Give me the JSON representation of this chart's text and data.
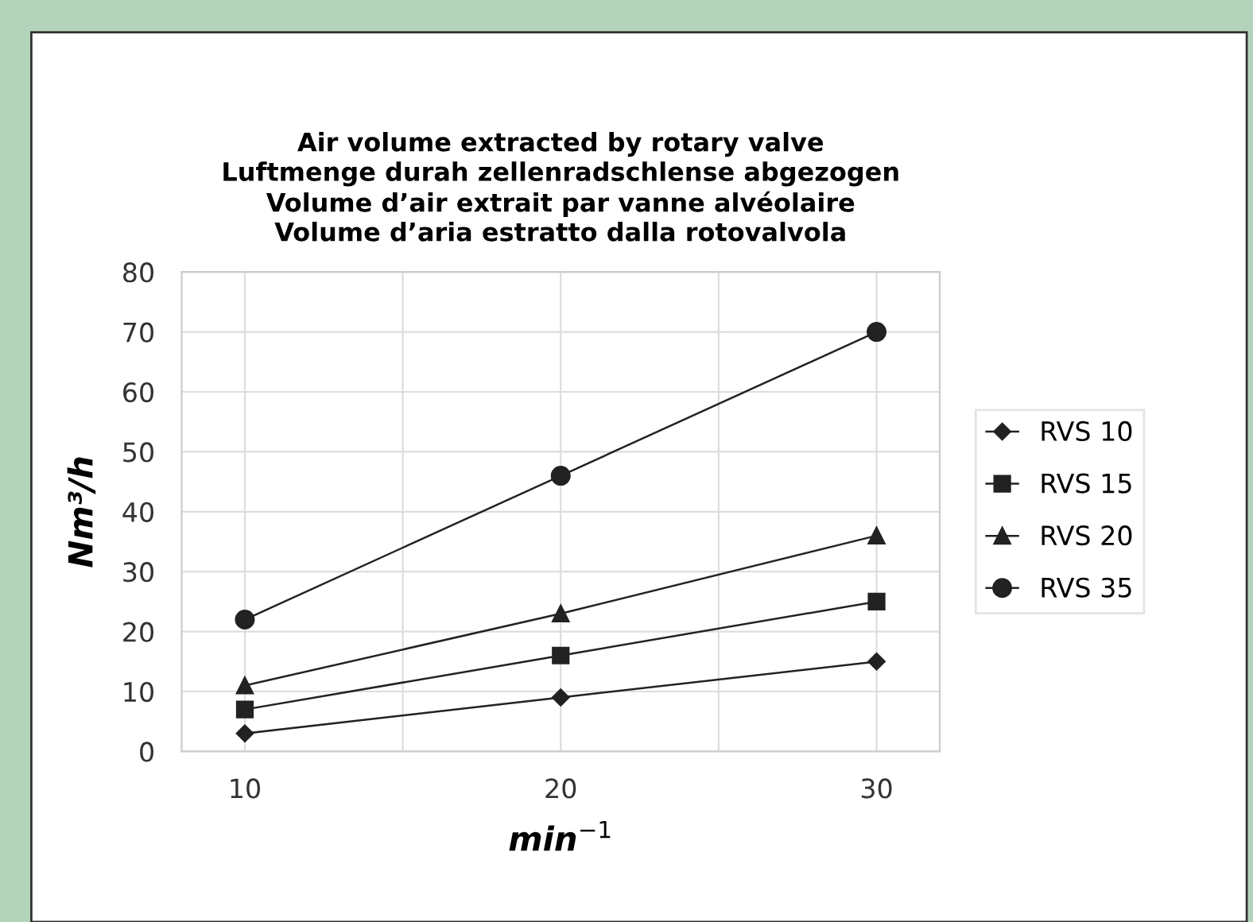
{
  "chart_data": {
    "type": "line",
    "title": "Air volume extracted by rotary valve\nLuftmenge durah zellenradschlense abgezogen\nVolume d’air extrait par vanne alvéolaire\nVolume d’aria estratto dalla rotovalvola",
    "xlabel": "min$^{−1}$",
    "ylabel": "Nm³/h",
    "x": [
      10,
      20,
      30
    ],
    "series": [
      {
        "name": "RVS 10",
        "color": "#222222",
        "marker": "diamond",
        "values": [
          3,
          9,
          15
        ]
      },
      {
        "name": "RVS 15",
        "color": "#222222",
        "marker": "square",
        "values": [
          7,
          16,
          25
        ]
      },
      {
        "name": "RVS 20",
        "color": "#222222",
        "marker": "triangle",
        "values": [
          11,
          23,
          36
        ]
      },
      {
        "name": "RVS 35",
        "color": "#222222",
        "marker": "circle",
        "values": [
          22,
          46,
          70
        ]
      }
    ],
    "xlim": [
      8,
      32
    ],
    "xticks": [
      10,
      {
        "value": 15,
        "label": null
      },
      20,
      {
        "value": 25,
        "label": null
      },
      30
    ],
    "ylim": [
      0,
      80
    ],
    "yticks": [
      0,
      10,
      20,
      30,
      40,
      50,
      60,
      70,
      80
    ],
    "grid": true,
    "legend": "right",
    "line_style": "solid"
  }
}
